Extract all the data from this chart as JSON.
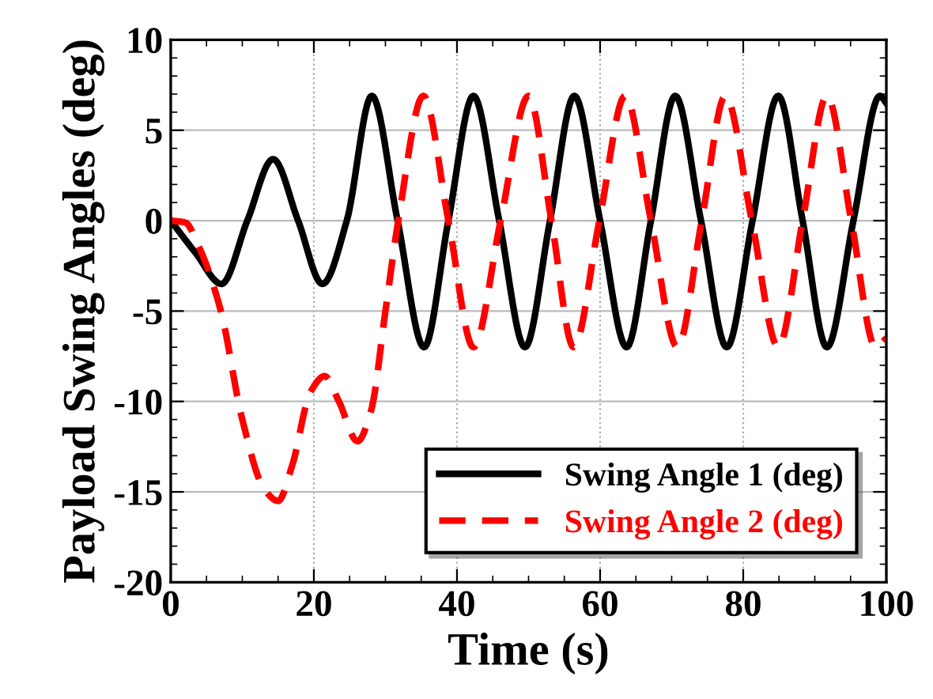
{
  "chart_data": {
    "type": "line",
    "xlabel": "Time (s)",
    "ylabel": "Payload Swing Angles (deg)",
    "xlim": [
      0,
      100
    ],
    "xticks": [
      0,
      20,
      40,
      60,
      80,
      100
    ],
    "ylim": [
      -20,
      10
    ],
    "yticks": [
      -20,
      -15,
      -10,
      -5,
      0,
      5,
      10
    ],
    "grid": true,
    "legend": "bottom right",
    "series": [
      {
        "name": "Swing Angle 1 (deg)",
        "color": "#000000",
        "line_style": "solid",
        "x": [
          0,
          3.5,
          7.1,
          10.7,
          14.3,
          17.8,
          21.2,
          24.6,
          28.1,
          31.7,
          35.4,
          38.8,
          42.3,
          45.9,
          49.5,
          53,
          56.4,
          60,
          63.7,
          67.1,
          70.5,
          74.1,
          77.7,
          81.3,
          84.9,
          88.3,
          91.7,
          95.4,
          99.1,
          100
        ],
        "values": [
          0,
          -1.8,
          -3.5,
          0,
          3.4,
          0,
          -3.5,
          0,
          6.9,
          0,
          -7,
          0,
          6.9,
          0,
          -7,
          0,
          6.9,
          0,
          -7,
          0,
          6.9,
          0,
          -7,
          0,
          6.9,
          0,
          -7,
          0,
          6.9,
          6.5
        ]
      },
      {
        "name": "Swing Angle 2 (deg)",
        "color": "#ff0000",
        "line_style": "dashed",
        "x": [
          0,
          2,
          4,
          7,
          10,
          13,
          15,
          17,
          19.5,
          21.5,
          23.5,
          26.1,
          28,
          30,
          31.8,
          35.3,
          38.8,
          42.3,
          46.1,
          50,
          53.2,
          56.3,
          59.9,
          63.5,
          67.1,
          70.8,
          74.2,
          77.5,
          81.2,
          84.9,
          88.3,
          91.7,
          95.1,
          98.5,
          100
        ],
        "values": [
          0,
          -0.1,
          -1.5,
          -5,
          -11,
          -14.8,
          -15.5,
          -13.5,
          -9.5,
          -8.6,
          -10,
          -12.2,
          -10.5,
          -5,
          0,
          6.9,
          0,
          -7,
          0,
          6.9,
          0,
          -7,
          0,
          6.9,
          0,
          -7,
          0,
          6.9,
          0,
          -7,
          0,
          6.9,
          0,
          -7,
          -6.5
        ]
      }
    ]
  }
}
